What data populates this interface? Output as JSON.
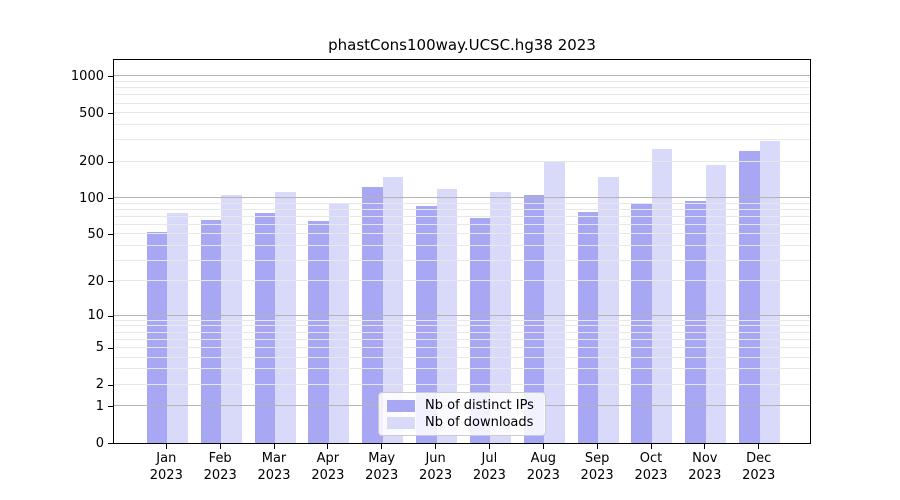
{
  "figure": {
    "title": "phastCons100way.UCSC.hg38 2023"
  },
  "chart_data": {
    "type": "bar",
    "title": "phastCons100way.UCSC.hg38 2023",
    "xlabel": "",
    "ylabel": "",
    "months": [
      "Jan",
      "Feb",
      "Mar",
      "Apr",
      "May",
      "Jun",
      "Jul",
      "Aug",
      "Sep",
      "Oct",
      "Nov",
      "Dec"
    ],
    "year_label": "2023",
    "series": [
      {
        "name": "Nb of distinct IPs",
        "color": "#a7a7f4",
        "values": [
          52,
          66,
          76,
          65,
          123,
          86,
          68,
          107,
          77,
          90,
          95,
          244
        ]
      },
      {
        "name": "Nb of downloads",
        "color": "#d9d9fa",
        "values": [
          76,
          106,
          112,
          92,
          150,
          119,
          113,
          198,
          149,
          254,
          188,
          296
        ]
      }
    ],
    "yticks": [
      0,
      1,
      2,
      5,
      10,
      20,
      50,
      100,
      200,
      500,
      1000
    ],
    "scale": "log1p",
    "ylim": [
      0,
      1400
    ],
    "grid": "both",
    "legend_position": "lower center"
  },
  "colors": {
    "bar_ips": "#a7a7f4",
    "bar_downloads": "#d9d9fa",
    "grid_major": "#b3b3b3",
    "grid_minor": "#e8e8e8",
    "spine": "#000000",
    "background": "#ffffff"
  }
}
